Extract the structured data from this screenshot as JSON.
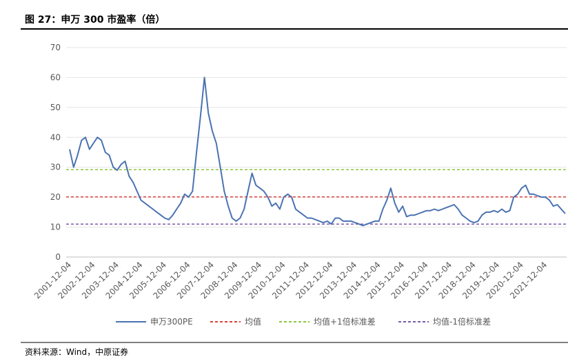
{
  "chart_data": {
    "type": "line",
    "title": "图 27：申万 300 市盈率（倍）",
    "source": "资料来源：Wind，中原证券",
    "categories": [
      "2001-12-04",
      null,
      null,
      null,
      null,
      null,
      "2002-12-04",
      null,
      null,
      null,
      null,
      null,
      "2003-12-04",
      null,
      null,
      null,
      null,
      null,
      "2004-12-04",
      null,
      null,
      null,
      null,
      null,
      "2005-12-04",
      null,
      null,
      null,
      null,
      null,
      "2006-12-04",
      null,
      null,
      null,
      null,
      null,
      "2007-12-04",
      null,
      null,
      null,
      null,
      null,
      "2008-12-04",
      null,
      null,
      null,
      null,
      null,
      "2009-12-04",
      null,
      null,
      null,
      null,
      null,
      "2010-12-04",
      null,
      null,
      null,
      null,
      null,
      "2011-12-04",
      null,
      null,
      null,
      null,
      null,
      "2012-12-04",
      null,
      null,
      null,
      null,
      null,
      "2013-12-04",
      null,
      null,
      null,
      null,
      null,
      "2014-12-04",
      null,
      null,
      null,
      null,
      null,
      "2015-12-04",
      null,
      null,
      null,
      null,
      null,
      "2016-12-04",
      null,
      null,
      null,
      null,
      null,
      "2017-12-04",
      null,
      null,
      null,
      null,
      null,
      "2018-12-04",
      null,
      null,
      null,
      null,
      null,
      "2019-12-04",
      null,
      null,
      null,
      null,
      null,
      "2020-12-04",
      null,
      null,
      null,
      null,
      null,
      "2021-12-04",
      null,
      null,
      null,
      null,
      null
    ],
    "series": [
      {
        "name": "申万300PE",
        "color": "#4a72b2",
        "values": [
          36,
          30,
          34,
          39,
          40,
          36,
          38,
          40,
          39,
          35,
          34,
          30,
          29,
          31,
          32,
          27,
          25,
          22,
          19,
          18,
          17,
          16,
          15,
          14,
          13,
          12.5,
          14,
          16,
          18,
          21,
          20,
          22,
          35,
          47,
          60,
          48,
          42,
          38,
          30,
          22,
          17,
          13,
          12,
          13,
          16,
          22,
          28,
          24,
          23,
          22,
          20,
          17,
          18,
          16,
          20,
          21,
          20,
          16,
          15,
          14,
          13,
          13,
          12.5,
          12,
          11.5,
          12,
          11,
          13,
          13,
          12,
          12,
          12,
          11.5,
          11,
          10.5,
          11,
          11.5,
          12,
          12,
          16,
          19,
          23,
          18,
          15,
          17,
          13.5,
          14,
          14,
          14.5,
          15,
          15.5,
          15.5,
          16,
          15.5,
          16,
          16.5,
          17,
          17.5,
          16,
          14,
          13,
          12,
          11.5,
          12,
          14,
          15,
          15,
          15.5,
          15,
          16,
          15,
          15.5,
          20,
          21,
          23,
          24,
          21,
          21,
          20.5,
          20,
          20,
          19,
          17,
          17.5,
          16,
          14.5
        ]
      }
    ],
    "hlines": [
      {
        "name": "均值",
        "color": "#d9403a",
        "value": 20.1
      },
      {
        "name": "均值+1倍标准差",
        "color": "#8dc63f",
        "value": 29.2
      },
      {
        "name": "均值-1倍标准差",
        "color": "#7b5aa6",
        "value": 11.0
      }
    ],
    "ylim": [
      0,
      70
    ],
    "yticks": [
      0,
      10,
      20,
      30,
      40,
      50,
      60,
      70
    ],
    "grid": true
  }
}
